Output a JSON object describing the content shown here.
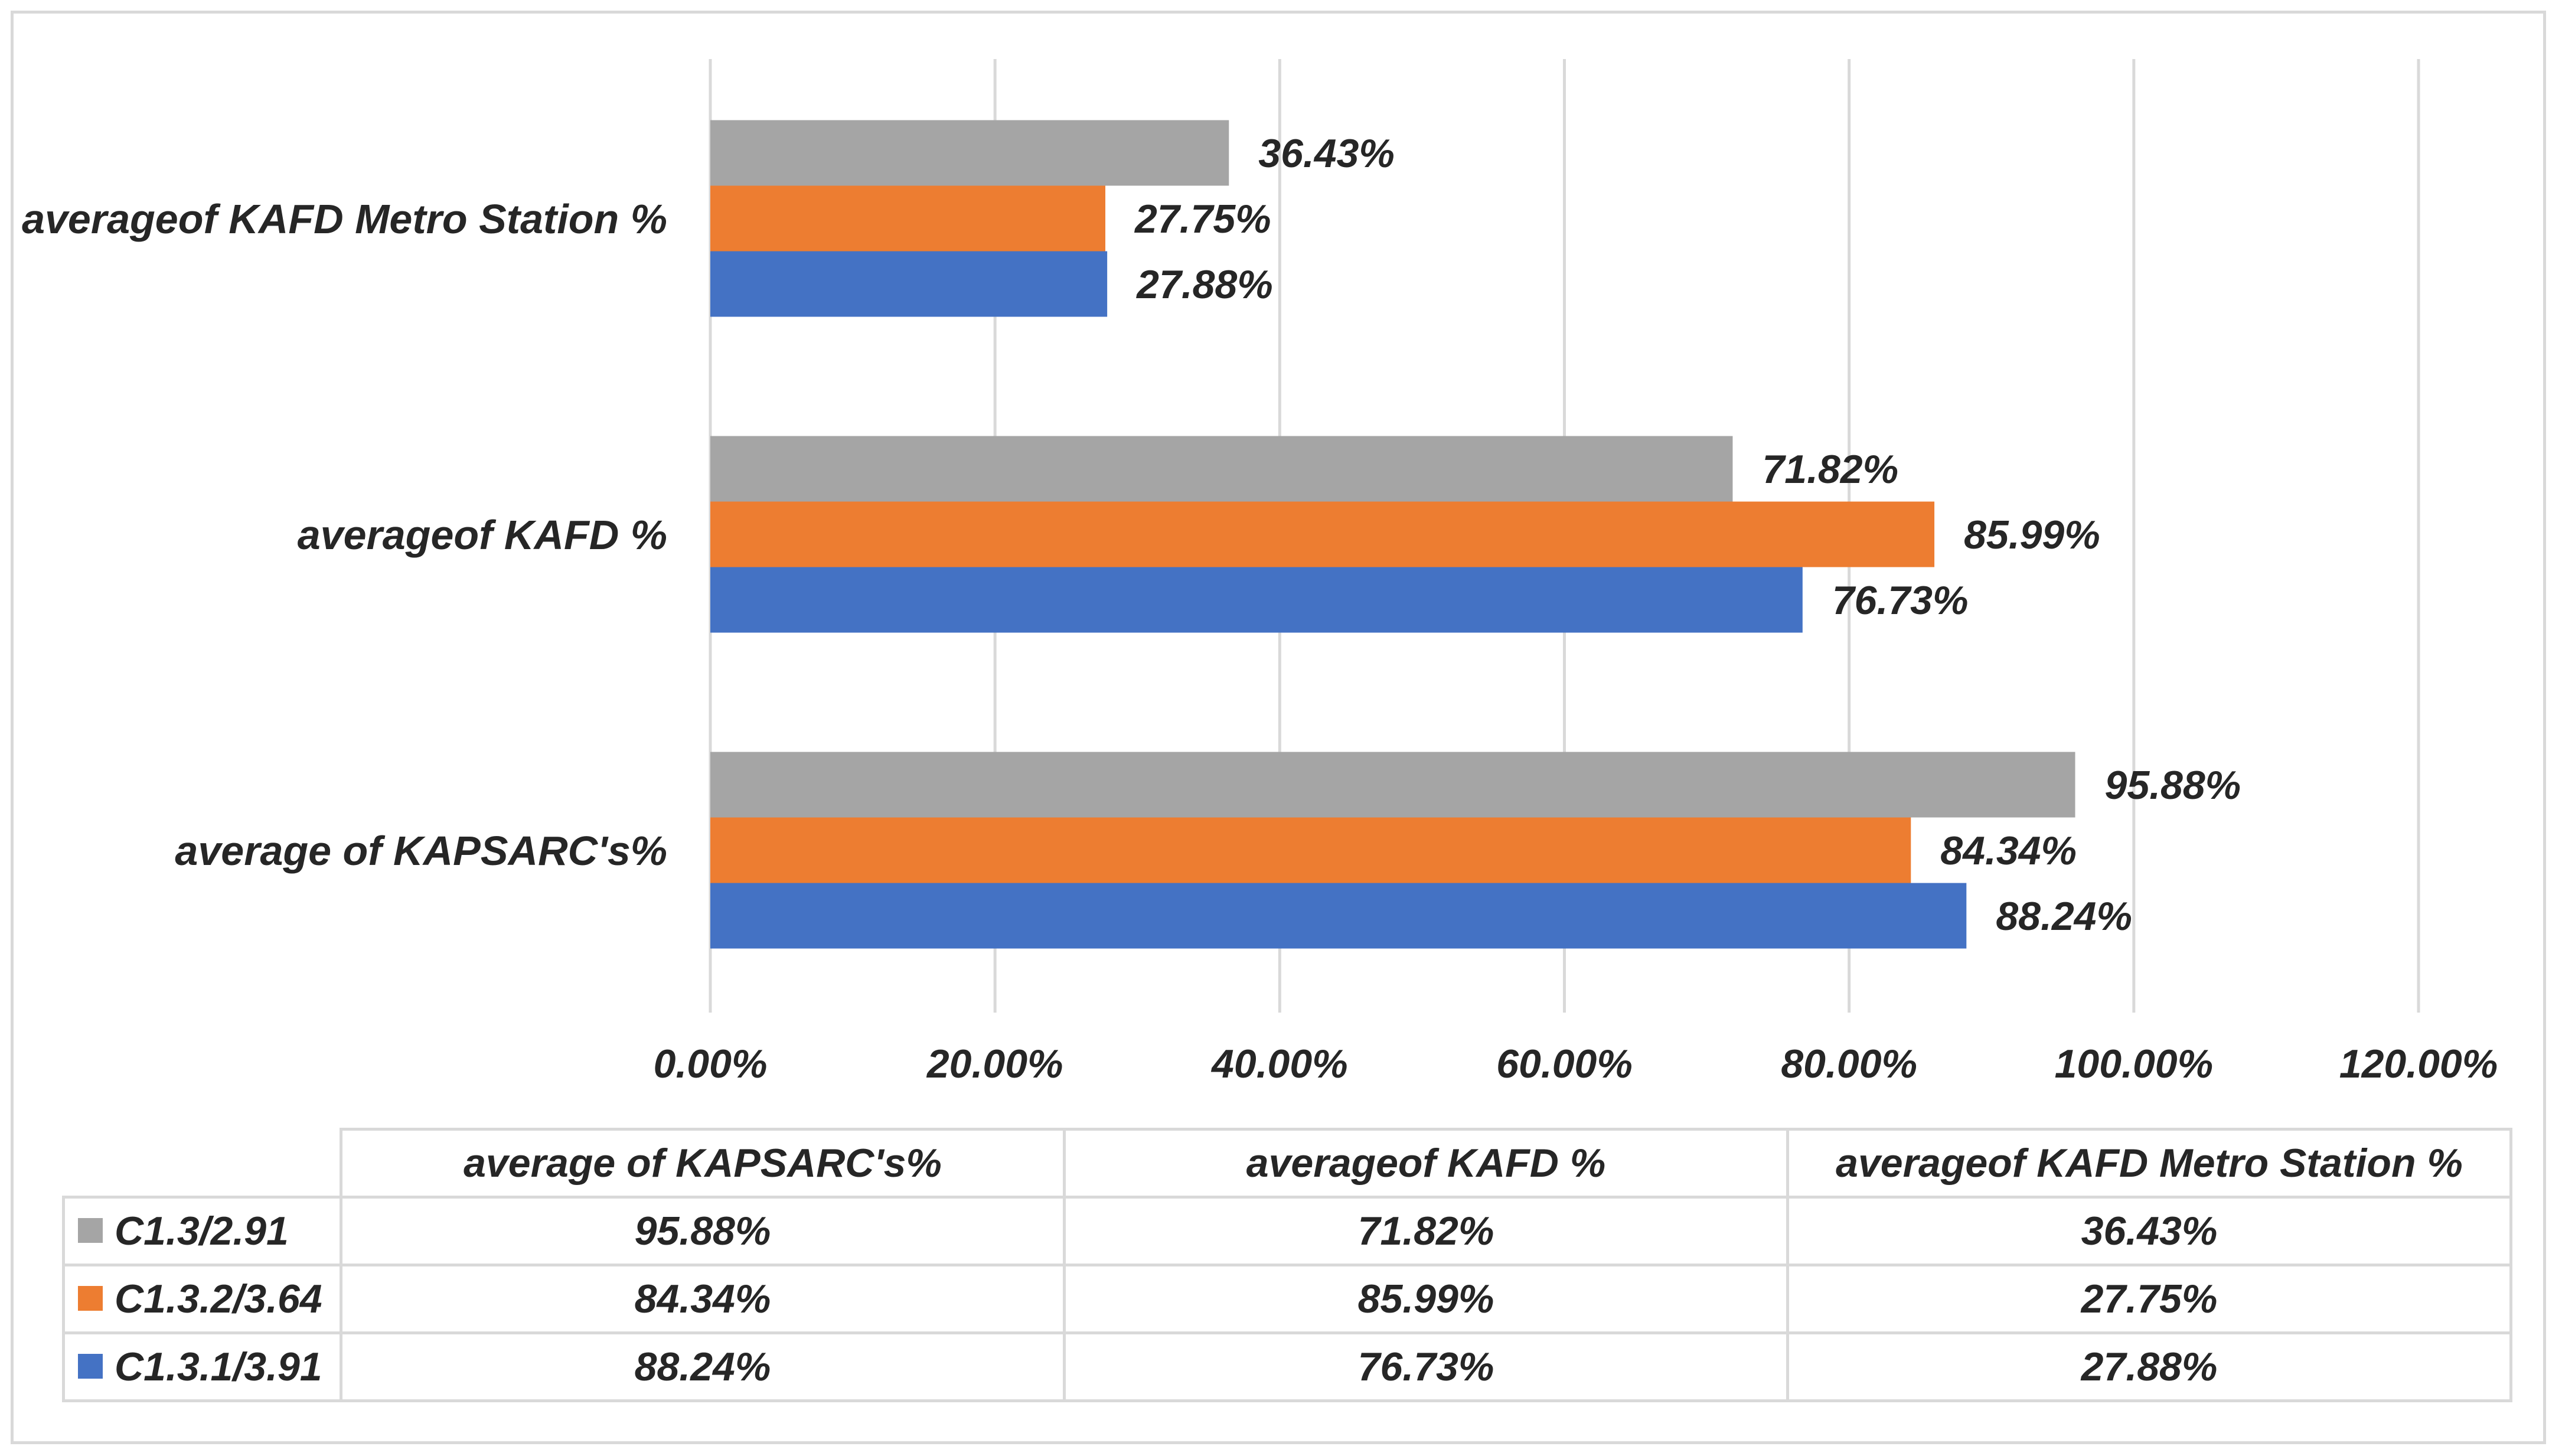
{
  "chart_data": {
    "type": "bar",
    "orientation": "horizontal",
    "categories": [
      "averageof KAFD Metro Station  %",
      "averageof KAFD %",
      "average of KAPSARC's%"
    ],
    "series": [
      {
        "name": "C1.3/2.91",
        "color": "#a5a5a5",
        "values": [
          36.43,
          71.82,
          95.88
        ],
        "labels": [
          "36.43%",
          "71.82%",
          "95.88%"
        ]
      },
      {
        "name": "C1.3.2/3.64",
        "color": "#ed7d31",
        "values": [
          27.75,
          85.99,
          84.34
        ],
        "labels": [
          "27.75%",
          "85.99%",
          "84.34%"
        ]
      },
      {
        "name": "C1.3.1/3.91",
        "color": "#4472c4",
        "values": [
          27.88,
          76.73,
          88.24
        ],
        "labels": [
          "27.88%",
          "76.73%",
          "88.24%"
        ]
      }
    ],
    "xlim": [
      0,
      120
    ],
    "ticks": [
      0,
      20,
      40,
      60,
      80,
      100,
      120
    ],
    "tick_labels": [
      "0.00%",
      "20.00%",
      "40.00%",
      "60.00%",
      "80.00%",
      "100.00%",
      "120.00%"
    ],
    "grid": true,
    "legend": "data-table-below"
  },
  "table": {
    "headers": [
      "average of KAPSARC's%",
      "averageof KAFD %",
      "averageof KAFD Metro Station  %"
    ],
    "rows": [
      {
        "name": "C1.3/2.91",
        "color": "#a5a5a5",
        "cells": [
          "95.88%",
          "71.82%",
          "36.43%"
        ]
      },
      {
        "name": "C1.3.2/3.64",
        "color": "#ed7d31",
        "cells": [
          "84.34%",
          "85.99%",
          "27.75%"
        ]
      },
      {
        "name": "C1.3.1/3.91",
        "color": "#4472c4",
        "cells": [
          "88.24%",
          "76.73%",
          "27.88%"
        ]
      }
    ]
  },
  "colors": {
    "gridline": "#d9d9d9",
    "text": "#262626"
  }
}
